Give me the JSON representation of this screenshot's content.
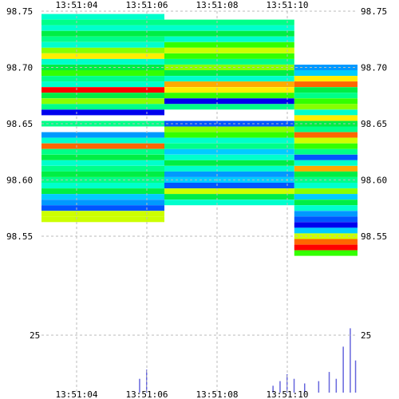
{
  "chart_data": {
    "type": "heatmap",
    "title": "",
    "xlabel": "",
    "ylabel": "",
    "x_ticks": [
      "13:51:04",
      "13:51:06",
      "13:51:08",
      "13:51:10"
    ],
    "y_ticks": [
      "98.75",
      "98.70",
      "98.65",
      "98.60",
      "98.55"
    ],
    "volume_tick": "25",
    "x_range": [
      "13:51:03",
      "13:51:12"
    ],
    "y_range": [
      98.5,
      98.75
    ],
    "volume_range": [
      0,
      40
    ],
    "grid": true,
    "legend": "none",
    "x_tick_times_s": [
      4,
      6,
      8,
      10
    ],
    "y_tick_values": [
      98.75,
      98.7,
      98.65,
      98.6,
      98.55
    ],
    "volume_tick_value": 25,
    "palette": [
      "#0000ee",
      "#0055ff",
      "#0099ff",
      "#00ccff",
      "#00ffcc",
      "#00ff88",
      "#00ee44",
      "#33ff00",
      "#88ff00",
      "#ccff00",
      "#ffee00",
      "#ffaa00",
      "#ff6600",
      "#ff0000"
    ],
    "price_step": 0.005,
    "bands": [
      {
        "t0": 3.0,
        "t1": 6.5,
        "levels": [
          [
            98.745,
            4
          ],
          [
            98.74,
            5
          ],
          [
            98.735,
            4
          ],
          [
            98.73,
            6
          ],
          [
            98.725,
            5
          ],
          [
            98.72,
            4
          ],
          [
            98.715,
            8
          ],
          [
            98.71,
            10
          ],
          [
            98.705,
            4
          ],
          [
            98.7,
            6
          ],
          [
            98.695,
            7
          ],
          [
            98.69,
            5
          ],
          [
            98.685,
            4
          ],
          [
            98.68,
            13
          ],
          [
            98.675,
            6
          ],
          [
            98.67,
            8
          ],
          [
            98.665,
            5
          ],
          [
            98.66,
            0
          ],
          [
            98.655,
            null
          ],
          [
            98.65,
            5
          ],
          [
            98.645,
            null
          ],
          [
            98.64,
            2
          ],
          [
            98.635,
            4
          ],
          [
            98.63,
            12
          ],
          [
            98.625,
            5
          ],
          [
            98.62,
            6
          ],
          [
            98.615,
            4
          ],
          [
            98.61,
            5
          ],
          [
            98.605,
            6
          ],
          [
            98.6,
            5
          ],
          [
            98.595,
            4
          ],
          [
            98.59,
            6
          ],
          [
            98.585,
            3
          ],
          [
            98.58,
            2
          ],
          [
            98.575,
            1
          ],
          [
            98.57,
            9
          ],
          [
            98.565,
            9
          ]
        ]
      },
      {
        "t0": 6.5,
        "t1": 10.2,
        "levels": [
          [
            98.74,
            5
          ],
          [
            98.735,
            4
          ],
          [
            98.73,
            6
          ],
          [
            98.725,
            4
          ],
          [
            98.72,
            7
          ],
          [
            98.715,
            9
          ],
          [
            98.71,
            7
          ],
          [
            98.705,
            5
          ],
          [
            98.7,
            8
          ],
          [
            98.695,
            6
          ],
          [
            98.69,
            4
          ],
          [
            98.685,
            11
          ],
          [
            98.68,
            10
          ],
          [
            98.675,
            7
          ],
          [
            98.67,
            0
          ],
          [
            98.665,
            5
          ],
          [
            98.66,
            null
          ],
          [
            98.655,
            null
          ],
          [
            98.65,
            1
          ],
          [
            98.645,
            8
          ],
          [
            98.64,
            7
          ],
          [
            98.635,
            4
          ],
          [
            98.63,
            5
          ],
          [
            98.625,
            3
          ],
          [
            98.62,
            4
          ],
          [
            98.615,
            6
          ],
          [
            98.61,
            4
          ],
          [
            98.605,
            2
          ],
          [
            98.6,
            3
          ],
          [
            98.595,
            1
          ],
          [
            98.59,
            9
          ],
          [
            98.585,
            6
          ],
          [
            98.58,
            4
          ]
        ]
      },
      {
        "t0": 10.2,
        "t1": 12.0,
        "levels": [
          [
            98.7,
            2
          ],
          [
            98.695,
            3
          ],
          [
            98.69,
            10
          ],
          [
            98.685,
            12
          ],
          [
            98.68,
            6
          ],
          [
            98.675,
            5
          ],
          [
            98.67,
            7
          ],
          [
            98.665,
            8
          ],
          [
            98.66,
            4
          ],
          [
            98.655,
            10
          ],
          [
            98.65,
            6
          ],
          [
            98.645,
            5
          ],
          [
            98.64,
            12
          ],
          [
            98.635,
            9
          ],
          [
            98.63,
            7
          ],
          [
            98.625,
            5
          ],
          [
            98.62,
            1
          ],
          [
            98.615,
            4
          ],
          [
            98.61,
            11
          ],
          [
            98.605,
            6
          ],
          [
            98.6,
            5
          ],
          [
            98.595,
            4
          ],
          [
            98.59,
            8
          ],
          [
            98.585,
            3
          ],
          [
            98.58,
            6
          ],
          [
            98.575,
            4
          ],
          [
            98.57,
            2
          ],
          [
            98.565,
            1
          ],
          [
            98.56,
            0
          ],
          [
            98.555,
            3
          ],
          [
            98.55,
            9
          ],
          [
            98.545,
            12
          ],
          [
            98.54,
            13
          ],
          [
            98.535,
            7
          ]
        ]
      }
    ],
    "volume_bars": [
      {
        "t": 5.8,
        "v": 6
      },
      {
        "t": 6.0,
        "v": 10
      },
      {
        "t": 9.6,
        "v": 3
      },
      {
        "t": 9.8,
        "v": 5
      },
      {
        "t": 10.0,
        "v": 8
      },
      {
        "t": 10.2,
        "v": 6
      },
      {
        "t": 10.5,
        "v": 4
      },
      {
        "t": 10.9,
        "v": 5
      },
      {
        "t": 11.2,
        "v": 9
      },
      {
        "t": 11.4,
        "v": 6
      },
      {
        "t": 11.6,
        "v": 20
      },
      {
        "t": 11.8,
        "v": 28
      },
      {
        "t": 11.95,
        "v": 14
      }
    ]
  }
}
